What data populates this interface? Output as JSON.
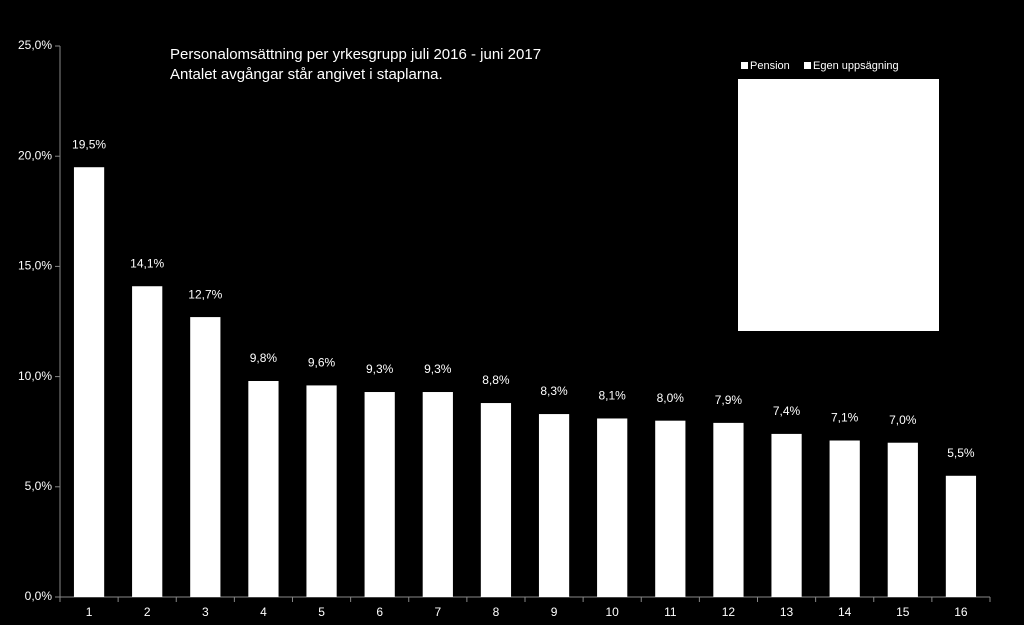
{
  "chart_data": {
    "type": "bar",
    "title": "Personalomsättning per yrkesgrupp juli 2016 - juni 2017",
    "subtitle": "Antalet avgångar står angivet  i staplarna.",
    "legend": [
      "Pension",
      "Egen uppsägning"
    ],
    "categories": [
      "1",
      "2",
      "3",
      "4",
      "5",
      "6",
      "7",
      "8",
      "9",
      "10",
      "11",
      "12",
      "13",
      "14",
      "15",
      "16"
    ],
    "values": [
      19.5,
      14.1,
      12.7,
      9.8,
      9.6,
      9.3,
      9.3,
      8.8,
      8.3,
      8.1,
      8.0,
      7.9,
      7.4,
      7.1,
      7.0,
      5.5
    ],
    "value_labels": [
      "19,5%",
      "14,1%",
      "12,7%",
      "9,8%",
      "9,6%",
      "9,3%",
      "9,3%",
      "8,8%",
      "8,3%",
      "8,1%",
      "8,0%",
      "7,9%",
      "7,4%",
      "7,1%",
      "7,0%",
      "5,5%"
    ],
    "color": "#ffffff",
    "ylim": [
      0,
      25
    ],
    "yticks": [
      {
        "value": 0,
        "label": "0,0%"
      },
      {
        "value": 5,
        "label": "5,0%"
      },
      {
        "value": 10,
        "label": "10,0%"
      },
      {
        "value": 15,
        "label": "15,0%"
      },
      {
        "value": 20,
        "label": "20,0%"
      },
      {
        "value": 25,
        "label": "25,0%"
      }
    ],
    "grid": false
  }
}
